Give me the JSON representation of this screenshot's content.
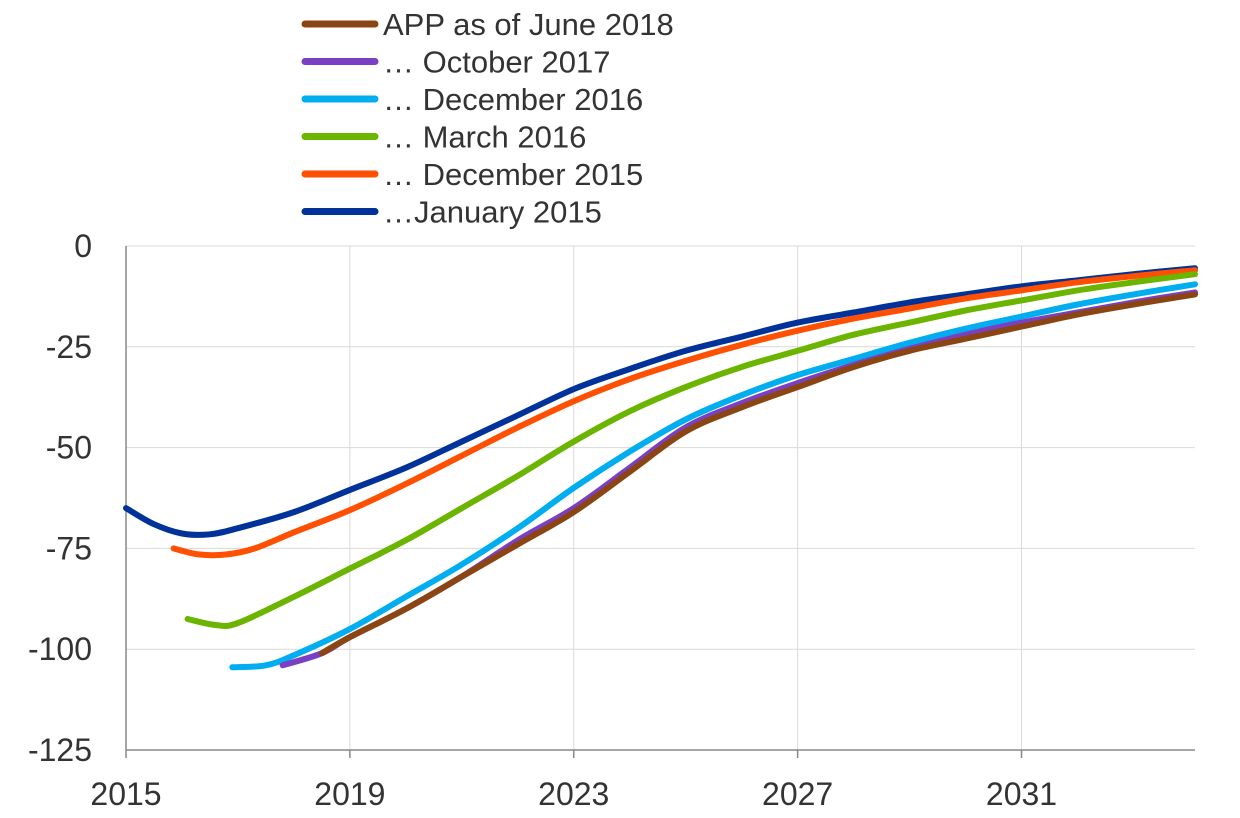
{
  "chart_data": {
    "type": "line",
    "title": "",
    "xlabel": "",
    "ylabel": "",
    "xlim": [
      2015,
      2034.1
    ],
    "ylim": [
      -125,
      0
    ],
    "x_ticks": [
      2015,
      2019,
      2023,
      2027,
      2031
    ],
    "x_tick_labels": [
      "2015",
      "2019",
      "2023",
      "2027",
      "2031"
    ],
    "y_ticks": [
      0,
      -25,
      -50,
      -75,
      -100,
      -125
    ],
    "y_tick_labels": [
      "0",
      "-25",
      "-50",
      "-75",
      "-100",
      "-125"
    ],
    "grid": true,
    "legend_position": "top-left",
    "series": [
      {
        "name": "APP as of June 2018",
        "color": "#8B4513",
        "points": [
          [
            2018.5,
            -101
          ],
          [
            2019,
            -97
          ],
          [
            2020,
            -90
          ],
          [
            2021,
            -82
          ],
          [
            2022,
            -74
          ],
          [
            2023,
            -66
          ],
          [
            2024,
            -56
          ],
          [
            2025,
            -46
          ],
          [
            2026,
            -40
          ],
          [
            2027,
            -35
          ],
          [
            2028,
            -30
          ],
          [
            2029,
            -26
          ],
          [
            2030,
            -23
          ],
          [
            2031,
            -20
          ],
          [
            2032,
            -17
          ],
          [
            2033,
            -14.5
          ],
          [
            2034.1,
            -12
          ]
        ]
      },
      {
        "name": "… October 2017",
        "color": "#7B3FC4",
        "points": [
          [
            2017.8,
            -104
          ],
          [
            2018.5,
            -101
          ],
          [
            2019,
            -97
          ],
          [
            2020,
            -90
          ],
          [
            2021,
            -82
          ],
          [
            2022,
            -73
          ],
          [
            2023,
            -65
          ],
          [
            2024,
            -55
          ],
          [
            2025,
            -45
          ],
          [
            2026,
            -39
          ],
          [
            2027,
            -34
          ],
          [
            2028,
            -29.5
          ],
          [
            2029,
            -25.5
          ],
          [
            2030,
            -22
          ],
          [
            2031,
            -19
          ],
          [
            2032,
            -16.5
          ],
          [
            2033,
            -14
          ],
          [
            2034.1,
            -11.5
          ]
        ]
      },
      {
        "name": "… December 2016",
        "color": "#00AEEF",
        "points": [
          [
            2016.9,
            -104.5
          ],
          [
            2017.5,
            -104
          ],
          [
            2018,
            -101.5
          ],
          [
            2019,
            -95
          ],
          [
            2020,
            -87
          ],
          [
            2021,
            -79
          ],
          [
            2022,
            -70
          ],
          [
            2023,
            -60
          ],
          [
            2024,
            -51
          ],
          [
            2025,
            -43
          ],
          [
            2026,
            -37
          ],
          [
            2027,
            -32
          ],
          [
            2028,
            -28
          ],
          [
            2029,
            -24
          ],
          [
            2030,
            -20.5
          ],
          [
            2031,
            -17.5
          ],
          [
            2032,
            -14.5
          ],
          [
            2033,
            -12
          ],
          [
            2034.1,
            -9.5
          ]
        ]
      },
      {
        "name": "… March 2016",
        "color": "#6BB400",
        "points": [
          [
            2016.1,
            -92.5
          ],
          [
            2016.6,
            -94
          ],
          [
            2017,
            -93.5
          ],
          [
            2018,
            -87
          ],
          [
            2019,
            -80
          ],
          [
            2020,
            -73
          ],
          [
            2021,
            -65
          ],
          [
            2022,
            -57
          ],
          [
            2023,
            -48.5
          ],
          [
            2024,
            -41
          ],
          [
            2025,
            -35
          ],
          [
            2026,
            -30
          ],
          [
            2027,
            -26
          ],
          [
            2028,
            -22
          ],
          [
            2029,
            -19
          ],
          [
            2030,
            -16
          ],
          [
            2031,
            -13.5
          ],
          [
            2032,
            -11
          ],
          [
            2033,
            -9
          ],
          [
            2034.1,
            -7
          ]
        ]
      },
      {
        "name": "… December 2015",
        "color": "#FF4F00",
        "points": [
          [
            2015.85,
            -75
          ],
          [
            2016.3,
            -76.5
          ],
          [
            2016.8,
            -76.5
          ],
          [
            2017.3,
            -75
          ],
          [
            2018,
            -71
          ],
          [
            2019,
            -65.5
          ],
          [
            2020,
            -59
          ],
          [
            2021,
            -52
          ],
          [
            2022,
            -45
          ],
          [
            2023,
            -38.5
          ],
          [
            2024,
            -33
          ],
          [
            2025,
            -28.5
          ],
          [
            2026,
            -24.5
          ],
          [
            2027,
            -21
          ],
          [
            2028,
            -18
          ],
          [
            2029,
            -15.5
          ],
          [
            2030,
            -13
          ],
          [
            2031,
            -11
          ],
          [
            2032,
            -9
          ],
          [
            2033,
            -7.5
          ],
          [
            2034.1,
            -6
          ]
        ]
      },
      {
        "name": "…January 2015",
        "color": "#003299",
        "points": [
          [
            2015,
            -65
          ],
          [
            2015.5,
            -69
          ],
          [
            2016,
            -71.3
          ],
          [
            2016.5,
            -71.5
          ],
          [
            2017,
            -70
          ],
          [
            2018,
            -66
          ],
          [
            2019,
            -60.5
          ],
          [
            2020,
            -55
          ],
          [
            2021,
            -48.5
          ],
          [
            2022,
            -42
          ],
          [
            2023,
            -35.5
          ],
          [
            2024,
            -30.5
          ],
          [
            2025,
            -26
          ],
          [
            2026,
            -22.5
          ],
          [
            2027,
            -19
          ],
          [
            2028,
            -16.5
          ],
          [
            2029,
            -14
          ],
          [
            2030,
            -12
          ],
          [
            2031,
            -10
          ],
          [
            2032,
            -8.5
          ],
          [
            2033,
            -7
          ],
          [
            2034.1,
            -5.5
          ]
        ]
      }
    ]
  }
}
